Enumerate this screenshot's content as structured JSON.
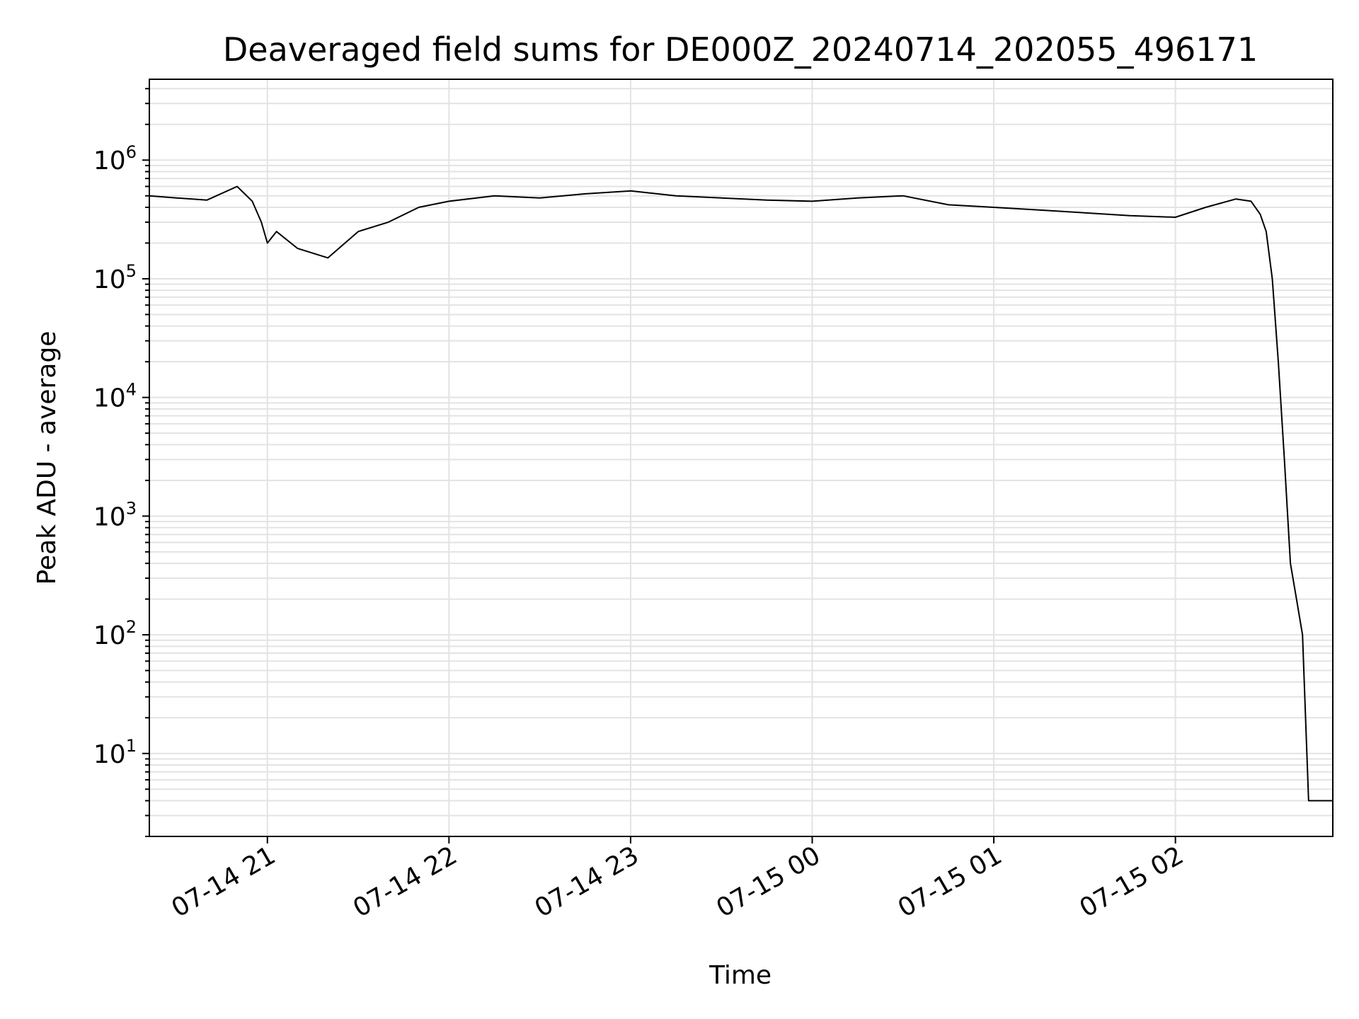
{
  "chart_data": {
    "type": "line",
    "title": "Deaveraged field sums for DE000Z_20240714_202055_496171",
    "xlabel": "Time",
    "ylabel": "Peak ADU - average",
    "yscale": "log",
    "ylim": [
      2,
      4800000.0
    ],
    "xlim": [
      "2024-07-14 20:21",
      "2024-07-15 02:52"
    ],
    "grid": true,
    "line_color": "#000000",
    "x_ticks": [
      {
        "t": "2024-07-14 21:00",
        "label": "07-14 21"
      },
      {
        "t": "2024-07-14 22:00",
        "label": "07-14 22"
      },
      {
        "t": "2024-07-14 23:00",
        "label": "07-14 23"
      },
      {
        "t": "2024-07-15 00:00",
        "label": "07-15 00"
      },
      {
        "t": "2024-07-15 01:00",
        "label": "07-15 01"
      },
      {
        "t": "2024-07-15 02:00",
        "label": "07-15 02"
      }
    ],
    "y_ticks": [
      {
        "value": 10,
        "base": "10",
        "exp": "1"
      },
      {
        "value": 100,
        "base": "10",
        "exp": "2"
      },
      {
        "value": 1000,
        "base": "10",
        "exp": "3"
      },
      {
        "value": 10000,
        "base": "10",
        "exp": "4"
      },
      {
        "value": 100000,
        "base": "10",
        "exp": "5"
      },
      {
        "value": 1000000,
        "base": "10",
        "exp": "6"
      }
    ],
    "series": [
      {
        "x": [
          "2024-07-14 20:21",
          "2024-07-14 20:30",
          "2024-07-14 20:40",
          "2024-07-14 20:50",
          "2024-07-14 20:55",
          "2024-07-14 20:58",
          "2024-07-14 21:00",
          "2024-07-14 21:03",
          "2024-07-14 21:10",
          "2024-07-14 21:20",
          "2024-07-14 21:30",
          "2024-07-14 21:40",
          "2024-07-14 21:50",
          "2024-07-14 22:00",
          "2024-07-14 22:15",
          "2024-07-14 22:30",
          "2024-07-14 22:45",
          "2024-07-14 23:00",
          "2024-07-14 23:15",
          "2024-07-14 23:30",
          "2024-07-14 23:45",
          "2024-07-15 00:00",
          "2024-07-15 00:15",
          "2024-07-15 00:30",
          "2024-07-15 00:45",
          "2024-07-15 01:00",
          "2024-07-15 01:15",
          "2024-07-15 01:30",
          "2024-07-15 01:45",
          "2024-07-15 02:00",
          "2024-07-15 02:10",
          "2024-07-15 02:20",
          "2024-07-15 02:25",
          "2024-07-15 02:28",
          "2024-07-15 02:30",
          "2024-07-15 02:32",
          "2024-07-15 02:34",
          "2024-07-15 02:36",
          "2024-07-15 02:38",
          "2024-07-15 02:40",
          "2024-07-15 02:42",
          "2024-07-15 02:44",
          "2024-07-15 02:46",
          "2024-07-15 02:48",
          "2024-07-15 02:52"
        ],
        "y": [
          500000,
          480000,
          460000,
          600000,
          450000,
          300000,
          200000,
          250000,
          180000,
          150000,
          250000,
          300000,
          400000,
          450000,
          500000,
          480000,
          520000,
          550000,
          500000,
          480000,
          460000,
          450000,
          480000,
          500000,
          420000,
          400000,
          380000,
          360000,
          340000,
          330000,
          400000,
          470000,
          450000,
          350000,
          250000,
          100000,
          20000,
          3000,
          400,
          200,
          100,
          4,
          4,
          4,
          4
        ]
      }
    ]
  }
}
